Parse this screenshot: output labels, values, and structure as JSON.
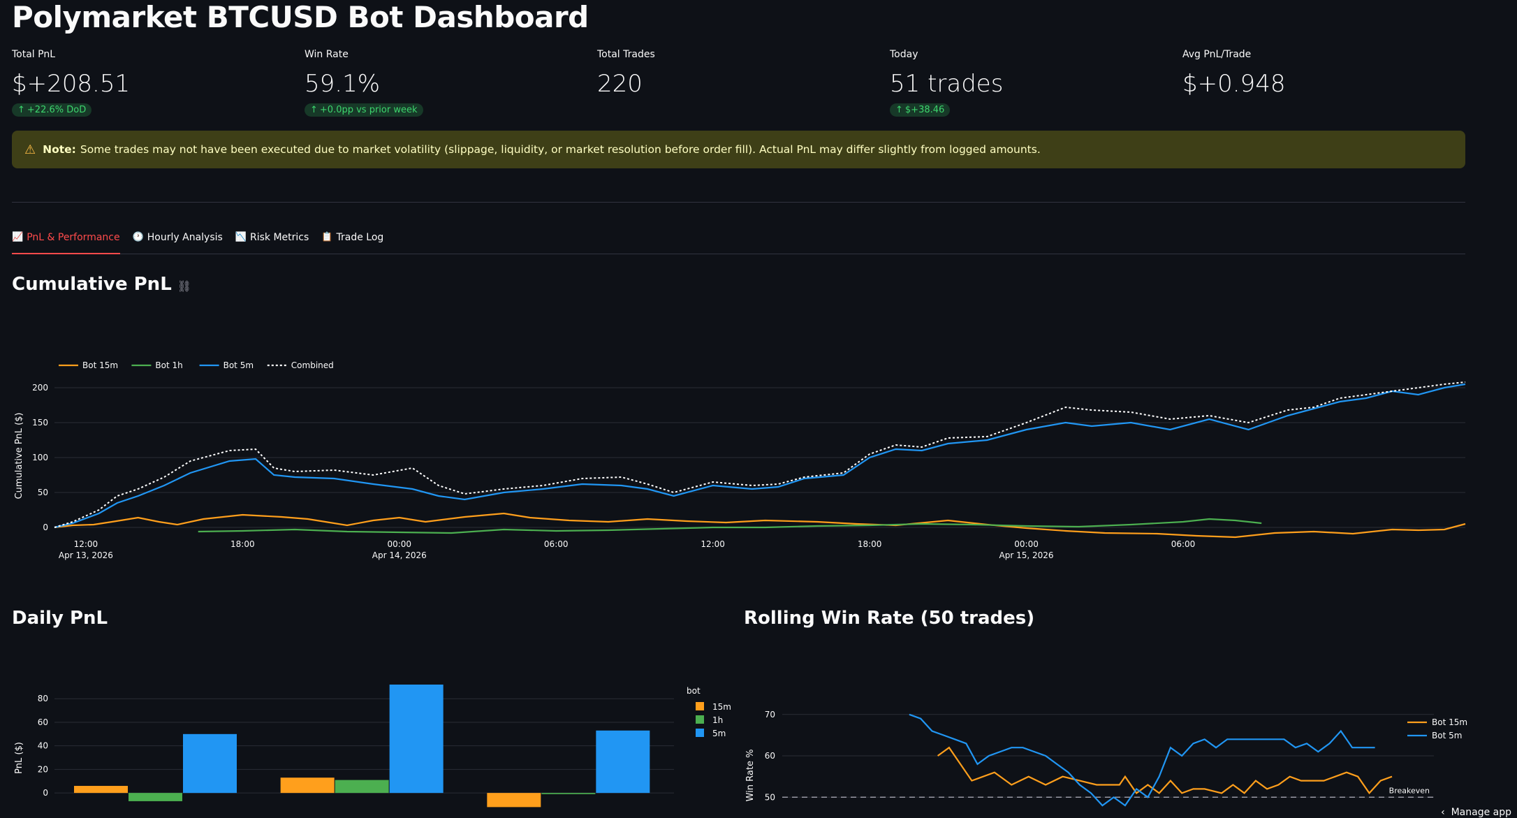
{
  "page_title": "Polymarket BTCUSD Bot Dashboard",
  "metrics": [
    {
      "label": "Total PnL",
      "value": "$+208.51",
      "delta": "+22.6% DoD"
    },
    {
      "label": "Win Rate",
      "value": "59.1%",
      "delta": "+0.0pp vs prior week"
    },
    {
      "label": "Total Trades",
      "value": "220",
      "delta": null
    },
    {
      "label": "Today",
      "value": "51 trades",
      "delta": "$+38.46"
    },
    {
      "label": "Avg PnL/Trade",
      "value": "$+0.948",
      "delta": null
    }
  ],
  "warning": {
    "icon": "warning-icon",
    "bold": "Note:",
    "text": "Some trades may not have been executed due to market volatility (slippage, liquidity, or market resolution before order fill). Actual PnL may differ slightly from logged amounts."
  },
  "tabs": [
    {
      "label": "PnL & Performance",
      "icon": "chart-increasing-icon",
      "active": true
    },
    {
      "label": "Hourly Analysis",
      "icon": "clock-icon",
      "active": false
    },
    {
      "label": "Risk Metrics",
      "icon": "chart-decreasing-icon",
      "active": false
    },
    {
      "label": "Trade Log",
      "icon": "clipboard-icon",
      "active": false
    }
  ],
  "sections": {
    "cumulative": "Cumulative PnL",
    "daily": "Daily PnL",
    "rolling": "Rolling Win Rate (50 trades)"
  },
  "manage_app": "Manage app",
  "colors": {
    "bot15m": "#ff9f1c",
    "bot1h": "#4caf50",
    "bot5m": "#2196f3",
    "combined": "#ffffff",
    "accent": "#ff4b4b"
  },
  "chart_data": [
    {
      "type": "line",
      "ylabel": "Cumulative PnL ($)",
      "ylim": [
        -10,
        215
      ],
      "yticks": [
        0,
        50,
        100,
        150,
        200
      ],
      "xlim": [
        -1.2,
        52.8
      ],
      "xticks": [
        {
          "x": 0,
          "line1": "12:00",
          "line2": "Apr 13, 2026"
        },
        {
          "x": 6,
          "line1": "18:00",
          "line2": ""
        },
        {
          "x": 12,
          "line1": "00:00",
          "line2": "Apr 14, 2026"
        },
        {
          "x": 18,
          "line1": "06:00",
          "line2": ""
        },
        {
          "x": 24,
          "line1": "12:00",
          "line2": ""
        },
        {
          "x": 30,
          "line1": "18:00",
          "line2": ""
        },
        {
          "x": 36,
          "line1": "00:00",
          "line2": "Apr 15, 2026"
        },
        {
          "x": 42,
          "line1": "06:00",
          "line2": ""
        }
      ],
      "x_unit": "hours since Apr 13 2026 12:00",
      "legend": [
        "Bot 15m",
        "Bot 1h",
        "Bot 5m",
        "Combined"
      ],
      "series": [
        {
          "name": "Bot 15m",
          "points": [
            [
              -1.2,
              0
            ],
            [
              -0.5,
              3
            ],
            [
              0.3,
              4
            ],
            [
              1,
              8
            ],
            [
              2,
              14
            ],
            [
              2.8,
              8
            ],
            [
              3.5,
              4
            ],
            [
              4.5,
              12
            ],
            [
              6,
              18
            ],
            [
              7.5,
              15
            ],
            [
              8.5,
              12
            ],
            [
              10,
              3
            ],
            [
              11,
              10
            ],
            [
              12,
              14
            ],
            [
              13,
              8
            ],
            [
              14.5,
              15
            ],
            [
              16,
              20
            ],
            [
              17,
              14
            ],
            [
              18.5,
              10
            ],
            [
              20,
              8
            ],
            [
              21.5,
              12
            ],
            [
              23,
              9
            ],
            [
              24.5,
              7
            ],
            [
              26,
              10
            ],
            [
              28,
              8
            ],
            [
              29.5,
              5
            ],
            [
              31,
              3
            ],
            [
              33,
              10
            ],
            [
              34.5,
              4
            ],
            [
              36,
              -1
            ],
            [
              37.5,
              -5
            ],
            [
              39,
              -8
            ],
            [
              41,
              -9
            ],
            [
              42.5,
              -12
            ],
            [
              44,
              -14
            ],
            [
              45.5,
              -8
            ],
            [
              47,
              -6
            ],
            [
              48.5,
              -9
            ],
            [
              50,
              -3
            ],
            [
              51,
              -4
            ],
            [
              52,
              -3
            ],
            [
              52.8,
              5
            ]
          ]
        },
        {
          "name": "Bot 1h",
          "points": [
            [
              4.3,
              -6
            ],
            [
              6,
              -5
            ],
            [
              8,
              -3
            ],
            [
              10,
              -6
            ],
            [
              12,
              -7
            ],
            [
              14,
              -8
            ],
            [
              16,
              -3
            ],
            [
              18,
              -5
            ],
            [
              20,
              -4
            ],
            [
              22,
              -2
            ],
            [
              24,
              0
            ],
            [
              26,
              0
            ],
            [
              28,
              2
            ],
            [
              30,
              3
            ],
            [
              32,
              5
            ],
            [
              34,
              4
            ],
            [
              36,
              2
            ],
            [
              38,
              1
            ],
            [
              40,
              4
            ],
            [
              42,
              8
            ],
            [
              43,
              12
            ],
            [
              44,
              10
            ],
            [
              45,
              6
            ]
          ]
        },
        {
          "name": "Bot 5m",
          "points": [
            [
              -1.2,
              0
            ],
            [
              -0.5,
              6
            ],
            [
              0.5,
              20
            ],
            [
              1.2,
              35
            ],
            [
              2,
              45
            ],
            [
              3,
              60
            ],
            [
              4,
              78
            ],
            [
              5.5,
              95
            ],
            [
              6.5,
              98
            ],
            [
              7.2,
              75
            ],
            [
              8,
              72
            ],
            [
              9.5,
              70
            ],
            [
              11,
              62
            ],
            [
              12.5,
              55
            ],
            [
              13.5,
              45
            ],
            [
              14.5,
              40
            ],
            [
              16,
              50
            ],
            [
              17.5,
              55
            ],
            [
              19,
              62
            ],
            [
              20.5,
              60
            ],
            [
              21.5,
              55
            ],
            [
              22.5,
              45
            ],
            [
              24,
              60
            ],
            [
              25.5,
              55
            ],
            [
              26.5,
              58
            ],
            [
              27.5,
              70
            ],
            [
              29,
              75
            ],
            [
              30,
              100
            ],
            [
              31,
              112
            ],
            [
              32,
              110
            ],
            [
              33,
              120
            ],
            [
              34.5,
              125
            ],
            [
              36,
              140
            ],
            [
              37.5,
              150
            ],
            [
              38.5,
              145
            ],
            [
              40,
              150
            ],
            [
              41.5,
              140
            ],
            [
              43,
              155
            ],
            [
              44.5,
              140
            ],
            [
              46,
              160
            ],
            [
              47,
              170
            ],
            [
              48,
              180
            ],
            [
              49,
              185
            ],
            [
              50,
              195
            ],
            [
              51,
              190
            ],
            [
              52,
              200
            ],
            [
              52.8,
              205
            ]
          ]
        },
        {
          "name": "Combined",
          "points": [
            [
              -1.2,
              0
            ],
            [
              -0.5,
              8
            ],
            [
              0.5,
              25
            ],
            [
              1.2,
              45
            ],
            [
              2,
              55
            ],
            [
              3,
              72
            ],
            [
              4,
              95
            ],
            [
              5.5,
              110
            ],
            [
              6.5,
              112
            ],
            [
              7.2,
              85
            ],
            [
              8,
              80
            ],
            [
              9.5,
              82
            ],
            [
              11,
              75
            ],
            [
              12.5,
              85
            ],
            [
              13.5,
              60
            ],
            [
              14.5,
              48
            ],
            [
              16,
              55
            ],
            [
              17.5,
              60
            ],
            [
              19,
              70
            ],
            [
              20.5,
              72
            ],
            [
              21.5,
              62
            ],
            [
              22.5,
              50
            ],
            [
              24,
              65
            ],
            [
              25.5,
              60
            ],
            [
              26.5,
              62
            ],
            [
              27.5,
              72
            ],
            [
              29,
              78
            ],
            [
              30,
              105
            ],
            [
              31,
              118
            ],
            [
              32,
              115
            ],
            [
              33,
              128
            ],
            [
              34.5,
              130
            ],
            [
              36,
              150
            ],
            [
              37.5,
              172
            ],
            [
              38.5,
              168
            ],
            [
              40,
              165
            ],
            [
              41.5,
              155
            ],
            [
              43,
              160
            ],
            [
              44.5,
              150
            ],
            [
              46,
              168
            ],
            [
              47,
              172
            ],
            [
              48,
              185
            ],
            [
              49,
              190
            ],
            [
              50,
              195
            ],
            [
              51,
              200
            ],
            [
              52,
              205
            ],
            [
              52.8,
              208
            ]
          ]
        }
      ]
    },
    {
      "type": "bar",
      "ylabel": "PnL ($)",
      "ylim": [
        -10,
        92
      ],
      "yticks": [
        0,
        20,
        40,
        60,
        80
      ],
      "legend_title": "bot",
      "legend": [
        "15m",
        "1h",
        "5m"
      ],
      "groups": [
        {
          "values": [
            6,
            -7,
            50
          ]
        },
        {
          "values": [
            13,
            11,
            92
          ]
        },
        {
          "values": [
            -12,
            -1,
            53
          ]
        }
      ]
    },
    {
      "type": "line",
      "ylabel": "Win Rate %",
      "ylim": [
        46,
        73
      ],
      "yticks": [
        50,
        60,
        70
      ],
      "xlim": [
        0,
        100
      ],
      "reference": {
        "y": 50,
        "label": "Breakeven"
      },
      "legend": [
        "Bot 15m",
        "Bot 5m"
      ],
      "series": [
        {
          "name": "Bot 15m",
          "points": [
            [
              20,
              60
            ],
            [
              22,
              62
            ],
            [
              24,
              58
            ],
            [
              26,
              54
            ],
            [
              30,
              56
            ],
            [
              33,
              53
            ],
            [
              36,
              55
            ],
            [
              39,
              53
            ],
            [
              42,
              55
            ],
            [
              45,
              54
            ],
            [
              48,
              53
            ],
            [
              52,
              53
            ],
            [
              53,
              55
            ],
            [
              55,
              51
            ],
            [
              57,
              53
            ],
            [
              59,
              51
            ],
            [
              61,
              54
            ],
            [
              63,
              51
            ],
            [
              65,
              52
            ],
            [
              67,
              52
            ],
            [
              70,
              51
            ],
            [
              72,
              53
            ],
            [
              74,
              51
            ],
            [
              76,
              54
            ],
            [
              78,
              52
            ],
            [
              80,
              53
            ],
            [
              82,
              55
            ],
            [
              84,
              54
            ],
            [
              86,
              54
            ],
            [
              88,
              54
            ],
            [
              90,
              55
            ],
            [
              92,
              56
            ],
            [
              94,
              55
            ],
            [
              96,
              51
            ],
            [
              98,
              54
            ],
            [
              100,
              55
            ]
          ]
        },
        {
          "name": "Bot 5m",
          "points": [
            [
              15,
              70
            ],
            [
              17,
              69
            ],
            [
              19,
              66
            ],
            [
              21,
              65
            ],
            [
              23,
              64
            ],
            [
              25,
              63
            ],
            [
              27,
              58
            ],
            [
              29,
              60
            ],
            [
              31,
              61
            ],
            [
              33,
              62
            ],
            [
              35,
              62
            ],
            [
              37,
              61
            ],
            [
              39,
              60
            ],
            [
              41,
              58
            ],
            [
              43,
              56
            ],
            [
              45,
              53
            ],
            [
              47,
              51
            ],
            [
              49,
              48
            ],
            [
              51,
              50
            ],
            [
              53,
              48
            ],
            [
              55,
              52
            ],
            [
              57,
              50
            ],
            [
              59,
              55
            ],
            [
              61,
              62
            ],
            [
              63,
              60
            ],
            [
              65,
              63
            ],
            [
              67,
              64
            ],
            [
              69,
              62
            ],
            [
              71,
              64
            ],
            [
              73,
              64
            ],
            [
              75,
              64
            ],
            [
              77,
              64
            ],
            [
              79,
              64
            ],
            [
              81,
              64
            ],
            [
              83,
              62
            ],
            [
              85,
              63
            ],
            [
              87,
              61
            ],
            [
              89,
              63
            ],
            [
              91,
              66
            ],
            [
              93,
              62
            ],
            [
              95,
              62
            ],
            [
              97,
              62
            ]
          ]
        }
      ]
    }
  ]
}
